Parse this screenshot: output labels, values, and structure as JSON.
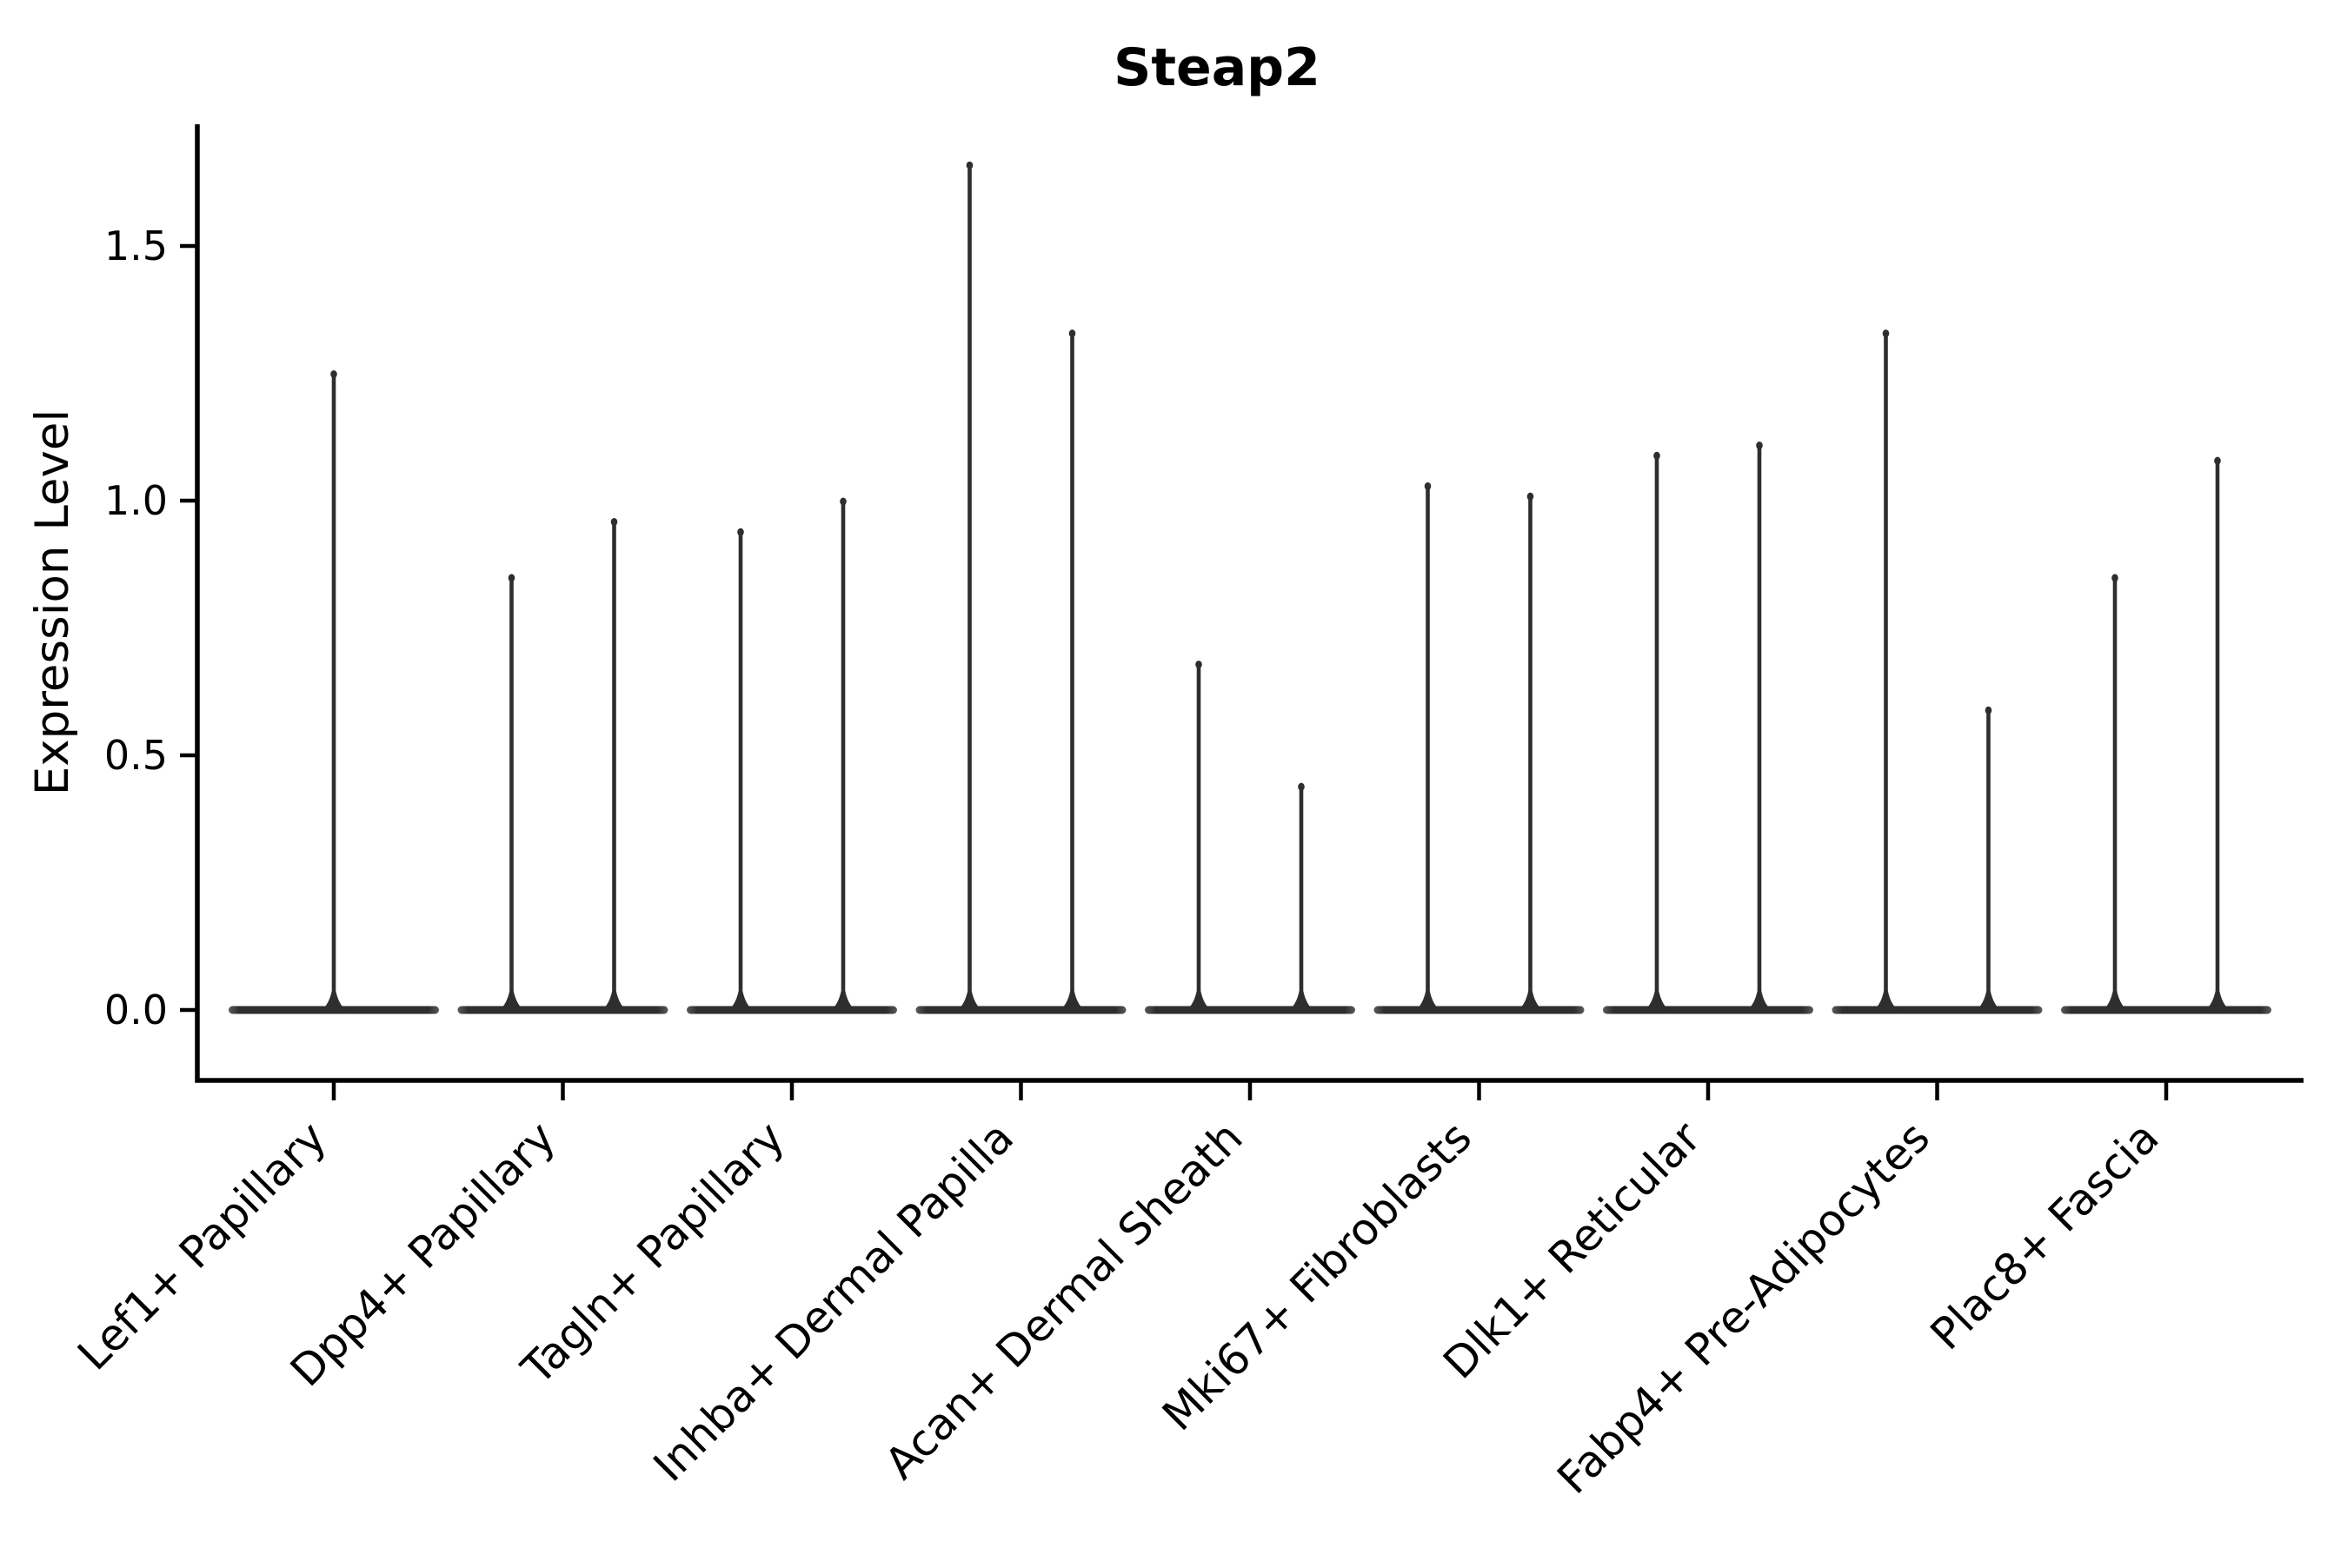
{
  "title": "Steap2",
  "ylabel": "Expression Level",
  "colors": {
    "violin_fill": "#2e2e2e",
    "violin_base_end": "#555555",
    "axis": "#000000",
    "background": "#ffffff"
  },
  "chart_data": {
    "type": "violin",
    "title": "Steap2",
    "xlabel": "",
    "ylabel": "Expression Level",
    "grid": false,
    "legend": "none",
    "ylim": [
      -0.14,
      1.75
    ],
    "ytick_values": [
      0.0,
      0.5,
      1.0,
      1.5
    ],
    "ytick_labels": [
      "0.0",
      "0.5",
      "1.0",
      "1.5"
    ],
    "categories": [
      "Lef1+ Papillary",
      "Dpp4+ Papillary",
      "Tagln+ Papillary",
      "Inhba+ Dermal Papilla",
      "Acan+ Dermal Sheath",
      "Mki67+ Fibroblasts",
      "Dlk1+ Reticular",
      "Fabp4+ Pre-Adipocytes",
      "Plac8+ Fascia"
    ],
    "violins": [
      {
        "category": "Lef1+ Papillary",
        "peak_expression": [
          1.25
        ]
      },
      {
        "category": "Dpp4+ Papillary",
        "peak_expression": [
          0.85,
          0.96
        ]
      },
      {
        "category": "Tagln+ Papillary",
        "peak_expression": [
          0.94,
          1.0
        ]
      },
      {
        "category": "Inhba+ Dermal Papilla",
        "peak_expression": [
          1.66,
          1.33
        ]
      },
      {
        "category": "Acan+ Dermal Sheath",
        "peak_expression": [
          0.68,
          0.44
        ]
      },
      {
        "category": "Mki67+ Fibroblasts",
        "peak_expression": [
          1.03,
          1.01
        ]
      },
      {
        "category": "Dlk1+ Reticular",
        "peak_expression": [
          1.09,
          1.11
        ]
      },
      {
        "category": "Fabp4+ Pre-Adipocytes",
        "peak_expression": [
          1.33,
          0.59
        ]
      },
      {
        "category": "Plac8+ Fascia",
        "peak_expression": [
          0.85,
          1.08
        ]
      }
    ],
    "note_all_violins_have_wide_zero_base": true
  }
}
